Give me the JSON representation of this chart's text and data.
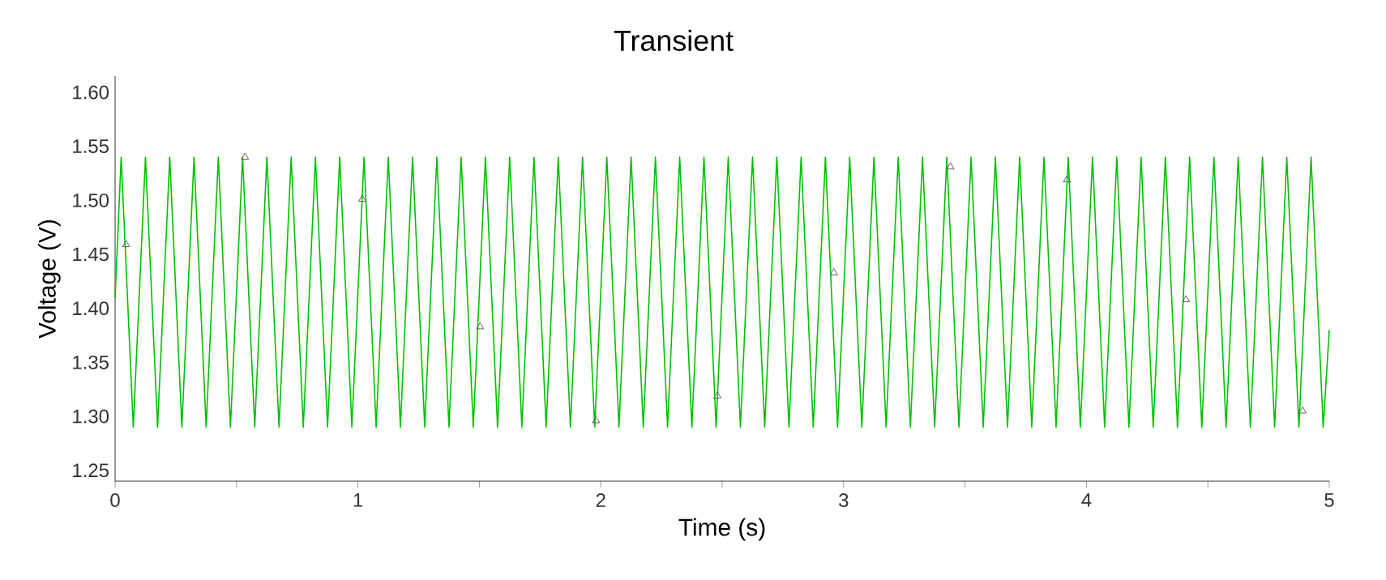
{
  "chart_data": {
    "type": "line",
    "title": "Transient",
    "xlabel": "Time (s)",
    "ylabel": "Voltage (V)",
    "xlim": [
      0,
      5
    ],
    "xticks": [
      0,
      {
        "value": 0.5,
        "label": null
      },
      1,
      {
        "value": 1.5,
        "label": null
      },
      2,
      {
        "value": 2.5,
        "label": null
      },
      3,
      {
        "value": 3.5,
        "label": null
      },
      4,
      {
        "value": 4.5,
        "label": null
      },
      5
    ],
    "ylim": [
      1.24,
      1.615
    ],
    "yticks": [
      {
        "value": 1.25,
        "label": "1.25"
      },
      {
        "value": 1.3,
        "label": "1.30"
      },
      {
        "value": 1.35,
        "label": "1.35"
      },
      {
        "value": 1.4,
        "label": "1.40"
      },
      {
        "value": 1.45,
        "label": "1.45"
      },
      {
        "value": 1.5,
        "label": "1.50"
      },
      {
        "value": 1.55,
        "label": "1.55"
      },
      {
        "value": 1.6,
        "label": "1.60"
      }
    ],
    "series": [
      {
        "color": "#00c000",
        "marker": "none",
        "x": [
          0,
          0.025,
          0.075,
          0.125,
          0.175,
          0.225,
          0.275,
          0.325,
          0.375,
          0.425,
          0.475,
          0.525,
          0.575,
          0.625,
          0.675,
          0.725,
          0.775,
          0.825,
          0.875,
          0.925,
          0.975,
          1.025,
          1.075,
          1.125,
          1.175,
          1.225,
          1.275,
          1.325,
          1.375,
          1.425,
          1.475,
          1.525,
          1.575,
          1.625,
          1.675,
          1.725,
          1.775,
          1.825,
          1.875,
          1.925,
          1.975,
          2.025,
          2.075,
          2.125,
          2.175,
          2.225,
          2.275,
          2.325,
          2.375,
          2.425,
          2.475,
          2.525,
          2.575,
          2.625,
          2.675,
          2.725,
          2.775,
          2.825,
          2.875,
          2.925,
          2.975,
          3.025,
          3.075,
          3.125,
          3.175,
          3.225,
          3.275,
          3.325,
          3.375,
          3.425,
          3.475,
          3.525,
          3.575,
          3.625,
          3.675,
          3.725,
          3.775,
          3.825,
          3.875,
          3.925,
          3.975,
          4.025,
          4.075,
          4.125,
          4.175,
          4.225,
          4.275,
          4.325,
          4.375,
          4.425,
          4.475,
          4.525,
          4.575,
          4.625,
          4.675,
          4.725,
          4.775,
          4.825,
          4.875,
          4.925,
          4.975,
          5
        ],
        "values": [
          1.41,
          1.54,
          1.29,
          1.54,
          1.29,
          1.54,
          1.29,
          1.54,
          1.29,
          1.54,
          1.29,
          1.54,
          1.29,
          1.54,
          1.29,
          1.54,
          1.29,
          1.54,
          1.29,
          1.54,
          1.29,
          1.54,
          1.29,
          1.54,
          1.29,
          1.54,
          1.29,
          1.54,
          1.29,
          1.54,
          1.29,
          1.54,
          1.29,
          1.54,
          1.29,
          1.54,
          1.29,
          1.54,
          1.29,
          1.54,
          1.29,
          1.54,
          1.29,
          1.54,
          1.29,
          1.54,
          1.29,
          1.54,
          1.29,
          1.54,
          1.29,
          1.54,
          1.29,
          1.54,
          1.29,
          1.54,
          1.29,
          1.54,
          1.29,
          1.54,
          1.29,
          1.54,
          1.29,
          1.54,
          1.29,
          1.54,
          1.29,
          1.54,
          1.29,
          1.54,
          1.29,
          1.54,
          1.29,
          1.54,
          1.29,
          1.54,
          1.29,
          1.54,
          1.29,
          1.54,
          1.29,
          1.54,
          1.29,
          1.54,
          1.29,
          1.54,
          1.29,
          1.54,
          1.29,
          1.54,
          1.29,
          1.54,
          1.29,
          1.54,
          1.29,
          1.54,
          1.29,
          1.54,
          1.29,
          1.54,
          1.29,
          1.38
        ]
      },
      {
        "type": "scatter",
        "color": "#606060",
        "marker": "triangle",
        "x": [
          0.045,
          0.535,
          1.018,
          1.503,
          1.98,
          2.48,
          2.96,
          3.44,
          3.92,
          4.41,
          4.89
        ],
        "values": [
          1.459,
          1.54,
          1.501,
          1.383,
          1.296,
          1.319,
          1.433,
          1.531,
          1.519,
          1.408,
          1.305
        ]
      }
    ]
  }
}
